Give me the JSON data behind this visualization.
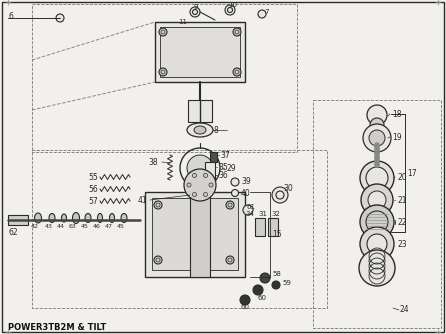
{
  "label": "POWER3TB2M & TILT",
  "bg_color": "#f2f0ec",
  "line_color": "#2a2a2a",
  "fill_light": "#e8e6e2",
  "fill_mid": "#d0ceca",
  "fill_dark": "#505050",
  "fig_width": 4.46,
  "fig_height": 3.34,
  "dpi": 100
}
